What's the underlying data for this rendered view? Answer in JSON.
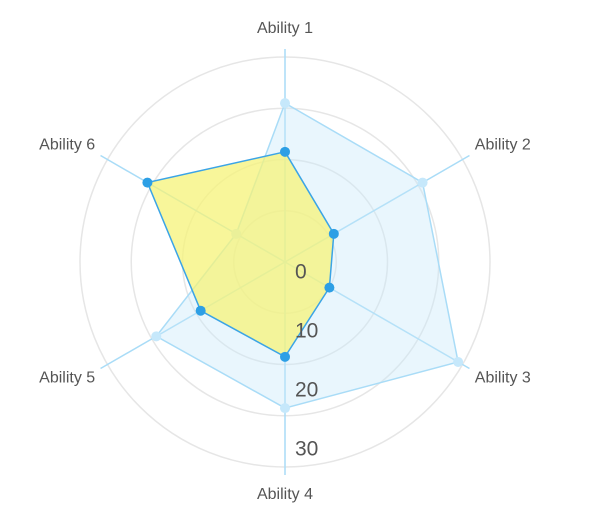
{
  "chart_data": {
    "type": "radar",
    "categories": [
      "Ability 1",
      "Ability 2",
      "Ability 3",
      "Ability 4",
      "Ability 5",
      "Ability 6"
    ],
    "rlim": [
      0,
      40
    ],
    "rticks": [
      0,
      10,
      20,
      30
    ],
    "series": [
      {
        "color": "#a9dcf7",
        "values": [
          31,
          31,
          39,
          28.5,
          29,
          11
        ]
      },
      {
        "color": "#3ba4e6",
        "values": [
          21.5,
          11,
          10,
          18.5,
          19,
          31
        ]
      }
    ]
  }
}
